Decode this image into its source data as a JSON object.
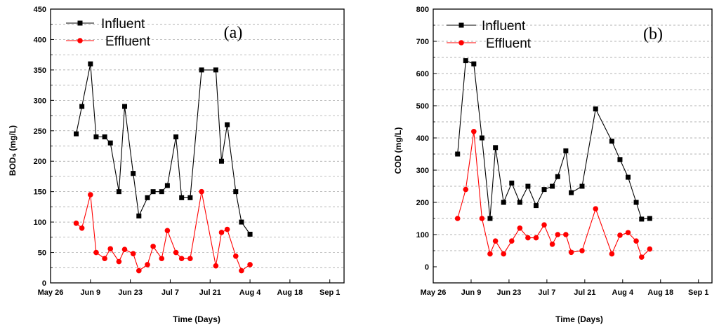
{
  "chart_data": [
    {
      "type": "line",
      "panel_label": "(a)",
      "xlabel": "Time (Days)",
      "ylabel": "BOD₅ (mg/L)",
      "ylim": [
        0,
        450
      ],
      "yticks": [
        0,
        50,
        100,
        150,
        200,
        250,
        300,
        350,
        400,
        450
      ],
      "xlim": [
        "2014-05-26",
        "2014-09-06"
      ],
      "xticks": [
        {
          "date": "2014-05-26",
          "label": "May 26"
        },
        {
          "date": "2014-06-09",
          "label": "Jun 9"
        },
        {
          "date": "2014-06-23",
          "label": "Jun 23"
        },
        {
          "date": "2014-07-07",
          "label": "Jul 7"
        },
        {
          "date": "2014-07-21",
          "label": "Jul 21"
        },
        {
          "date": "2014-08-04",
          "label": "Aug 4"
        },
        {
          "date": "2014-08-18",
          "label": "Aug 18"
        },
        {
          "date": "2014-09-01",
          "label": "Sep 1"
        }
      ],
      "grid": "horizontal dashed",
      "legend_position": "top-left",
      "series": [
        {
          "name": "Influent",
          "color": "#000000",
          "marker": "square",
          "points": [
            [
              "2014-06-04",
              245
            ],
            [
              "2014-06-06",
              290
            ],
            [
              "2014-06-09",
              360
            ],
            [
              "2014-06-11",
              240
            ],
            [
              "2014-06-14",
              240
            ],
            [
              "2014-06-16",
              230
            ],
            [
              "2014-06-19",
              150
            ],
            [
              "2014-06-21",
              290
            ],
            [
              "2014-06-24",
              180
            ],
            [
              "2014-06-26",
              110
            ],
            [
              "2014-06-29",
              140
            ],
            [
              "2014-07-01",
              150
            ],
            [
              "2014-07-04",
              150
            ],
            [
              "2014-07-06",
              160
            ],
            [
              "2014-07-09",
              240
            ],
            [
              "2014-07-11",
              140
            ],
            [
              "2014-07-14",
              140
            ],
            [
              "2014-07-18",
              350
            ],
            [
              "2014-07-23",
              350
            ],
            [
              "2014-07-25",
              200
            ],
            [
              "2014-07-27",
              260
            ],
            [
              "2014-07-30",
              150
            ],
            [
              "2014-08-01",
              100
            ],
            [
              "2014-08-04",
              80
            ]
          ]
        },
        {
          "name": "Effluent",
          "color": "#ff0000",
          "marker": "circle",
          "points": [
            [
              "2014-06-04",
              98
            ],
            [
              "2014-06-06",
              90
            ],
            [
              "2014-06-09",
              145
            ],
            [
              "2014-06-11",
              50
            ],
            [
              "2014-06-14",
              40
            ],
            [
              "2014-06-16",
              56
            ],
            [
              "2014-06-19",
              35
            ],
            [
              "2014-06-21",
              55
            ],
            [
              "2014-06-24",
              48
            ],
            [
              "2014-06-26",
              20
            ],
            [
              "2014-06-29",
              30
            ],
            [
              "2014-07-01",
              60
            ],
            [
              "2014-07-04",
              40
            ],
            [
              "2014-07-06",
              86
            ],
            [
              "2014-07-09",
              50
            ],
            [
              "2014-07-11",
              40
            ],
            [
              "2014-07-14",
              40
            ],
            [
              "2014-07-18",
              150
            ],
            [
              "2014-07-23",
              28
            ],
            [
              "2014-07-25",
              83
            ],
            [
              "2014-07-27",
              88
            ],
            [
              "2014-07-30",
              44
            ],
            [
              "2014-08-01",
              20
            ],
            [
              "2014-08-04",
              30
            ]
          ]
        }
      ]
    },
    {
      "type": "line",
      "panel_label": "(b)",
      "xlabel": "Time (Days)",
      "ylabel": "COD (mg/L)",
      "ylim": [
        -50,
        800
      ],
      "yticks": [
        0,
        100,
        200,
        300,
        400,
        500,
        600,
        700,
        800
      ],
      "xlim": [
        "2014-05-26",
        "2014-09-06"
      ],
      "xticks": [
        {
          "date": "2014-05-26",
          "label": "May 26"
        },
        {
          "date": "2014-06-09",
          "label": "Jun 9"
        },
        {
          "date": "2014-06-23",
          "label": "Jun 23"
        },
        {
          "date": "2014-07-07",
          "label": "Jul 7"
        },
        {
          "date": "2014-07-21",
          "label": "Jul 21"
        },
        {
          "date": "2014-08-04",
          "label": "Aug 4"
        },
        {
          "date": "2014-08-18",
          "label": "Aug 18"
        },
        {
          "date": "2014-09-01",
          "label": "Sep 1"
        }
      ],
      "grid": "horizontal dashed",
      "legend_position": "top-left",
      "series": [
        {
          "name": "Influent",
          "color": "#000000",
          "marker": "square",
          "points": [
            [
              "2014-06-04",
              350
            ],
            [
              "2014-06-07",
              640
            ],
            [
              "2014-06-10",
              630
            ],
            [
              "2014-06-13",
              400
            ],
            [
              "2014-06-16",
              150
            ],
            [
              "2014-06-18",
              370
            ],
            [
              "2014-06-21",
              200
            ],
            [
              "2014-06-24",
              260
            ],
            [
              "2014-06-27",
              200
            ],
            [
              "2014-06-30",
              250
            ],
            [
              "2014-07-03",
              190
            ],
            [
              "2014-07-06",
              240
            ],
            [
              "2014-07-09",
              250
            ],
            [
              "2014-07-11",
              280
            ],
            [
              "2014-07-14",
              360
            ],
            [
              "2014-07-16",
              230
            ],
            [
              "2014-07-20",
              250
            ],
            [
              "2014-07-25",
              490
            ],
            [
              "2014-07-31",
              390
            ],
            [
              "2014-08-03",
              333
            ],
            [
              "2014-08-06",
              278
            ],
            [
              "2014-08-09",
              200
            ],
            [
              "2014-08-11",
              148
            ],
            [
              "2014-08-14",
              150
            ]
          ]
        },
        {
          "name": "Effluent",
          "color": "#ff0000",
          "marker": "circle",
          "points": [
            [
              "2014-06-04",
              150
            ],
            [
              "2014-06-07",
              240
            ],
            [
              "2014-06-10",
              420
            ],
            [
              "2014-06-13",
              150
            ],
            [
              "2014-06-16",
              40
            ],
            [
              "2014-06-18",
              80
            ],
            [
              "2014-06-21",
              40
            ],
            [
              "2014-06-24",
              80
            ],
            [
              "2014-06-27",
              120
            ],
            [
              "2014-06-30",
              90
            ],
            [
              "2014-07-03",
              90
            ],
            [
              "2014-07-06",
              130
            ],
            [
              "2014-07-09",
              70
            ],
            [
              "2014-07-11",
              100
            ],
            [
              "2014-07-14",
              100
            ],
            [
              "2014-07-16",
              45
            ],
            [
              "2014-07-20",
              50
            ],
            [
              "2014-07-25",
              180
            ],
            [
              "2014-07-31",
              40
            ],
            [
              "2014-08-03",
              98
            ],
            [
              "2014-08-06",
              106
            ],
            [
              "2014-08-09",
              80
            ],
            [
              "2014-08-11",
              30
            ],
            [
              "2014-08-14",
              55
            ]
          ]
        }
      ]
    }
  ]
}
